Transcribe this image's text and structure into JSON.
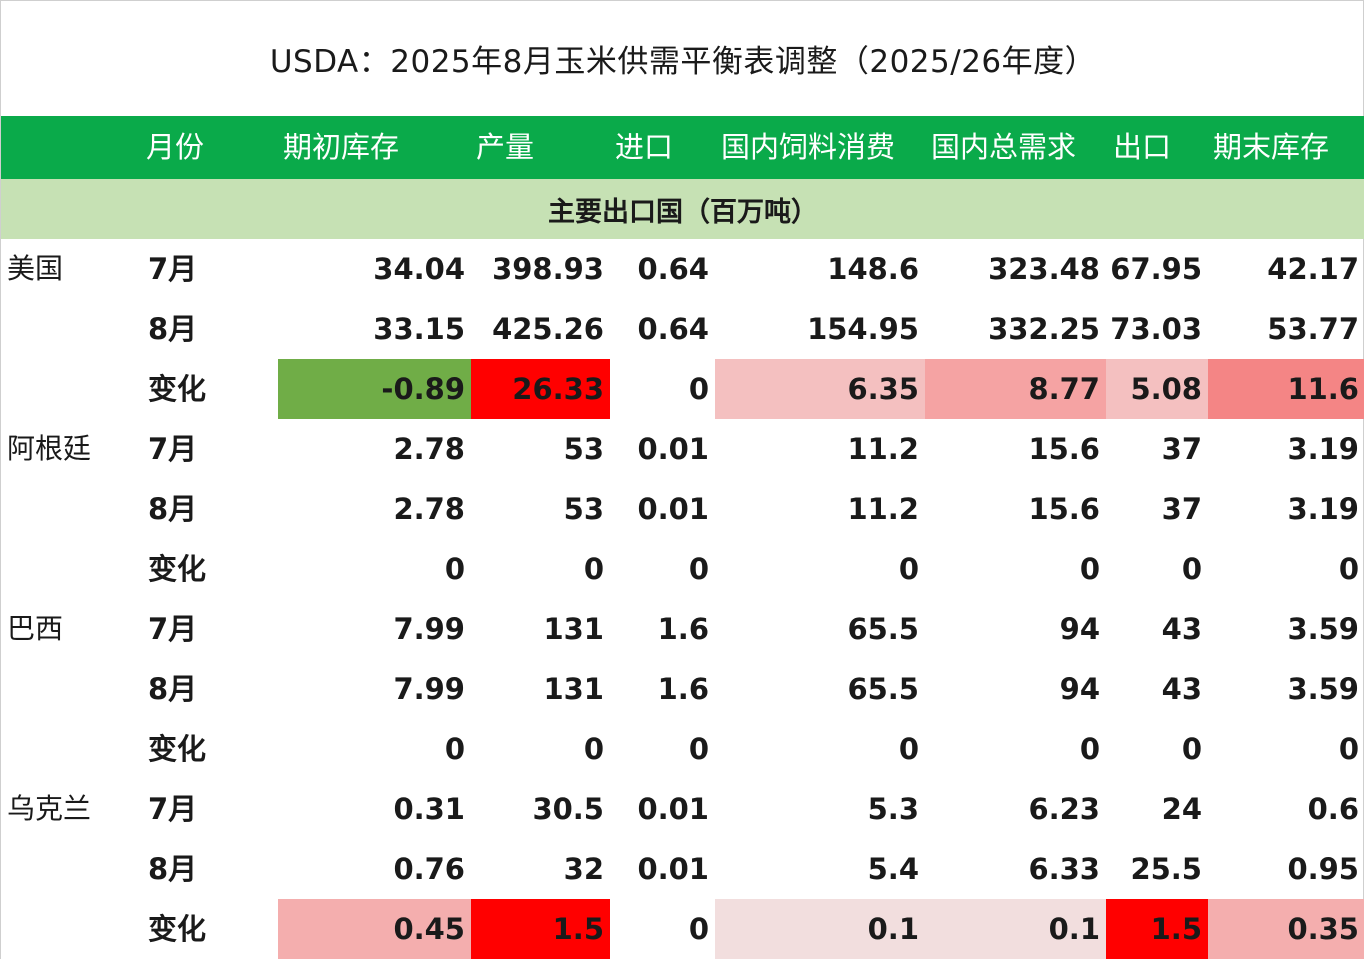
{
  "title": "USDA：2025年8月玉米供需平衡表调整（2025/26年度）",
  "headers": [
    "月份",
    "期初库存",
    "产量",
    "进口",
    "国内饲料消费",
    "国内总需求",
    "出口",
    "期末库存"
  ],
  "subheader": "主要出口国（百万吨）",
  "rows": [
    {
      "country": "美国",
      "month": "7月",
      "values": [
        "34.04",
        "398.93",
        "0.64",
        "148.6",
        "323.48",
        "67.95",
        "42.17"
      ],
      "colors": [
        null,
        null,
        null,
        null,
        null,
        null,
        null
      ]
    },
    {
      "country": "",
      "month": "8月",
      "values": [
        "33.15",
        "425.26",
        "0.64",
        "154.95",
        "332.25",
        "73.03",
        "53.77"
      ],
      "colors": [
        null,
        null,
        null,
        null,
        null,
        null,
        null
      ]
    },
    {
      "country": "",
      "month": "变化",
      "values": [
        "-0.89",
        "26.33",
        "0",
        "6.35",
        "8.77",
        "5.08",
        "11.6"
      ],
      "colors": [
        "#70ad47",
        "#ff0000",
        null,
        "#f4c0c0",
        "#f5a3a3",
        "#f4c0c0",
        "#f48585"
      ]
    },
    {
      "country": "阿根廷",
      "month": "7月",
      "values": [
        "2.78",
        "53",
        "0.01",
        "11.2",
        "15.6",
        "37",
        "3.19"
      ],
      "colors": [
        null,
        null,
        null,
        null,
        null,
        null,
        null
      ]
    },
    {
      "country": "",
      "month": "8月",
      "values": [
        "2.78",
        "53",
        "0.01",
        "11.2",
        "15.6",
        "37",
        "3.19"
      ],
      "colors": [
        null,
        null,
        null,
        null,
        null,
        null,
        null
      ]
    },
    {
      "country": "",
      "month": "变化",
      "values": [
        "0",
        "0",
        "0",
        "0",
        "0",
        "0",
        "0"
      ],
      "colors": [
        null,
        null,
        null,
        null,
        null,
        null,
        null
      ]
    },
    {
      "country": "巴西",
      "month": "7月",
      "values": [
        "7.99",
        "131",
        "1.6",
        "65.5",
        "94",
        "43",
        "3.59"
      ],
      "colors": [
        null,
        null,
        null,
        null,
        null,
        null,
        null
      ]
    },
    {
      "country": "",
      "month": "8月",
      "values": [
        "7.99",
        "131",
        "1.6",
        "65.5",
        "94",
        "43",
        "3.59"
      ],
      "colors": [
        null,
        null,
        null,
        null,
        null,
        null,
        null
      ]
    },
    {
      "country": "",
      "month": "变化",
      "values": [
        "0",
        "0",
        "0",
        "0",
        "0",
        "0",
        "0"
      ],
      "colors": [
        null,
        null,
        null,
        null,
        null,
        null,
        null
      ]
    },
    {
      "country": "乌克兰",
      "month": "7月",
      "values": [
        "0.31",
        "30.5",
        "0.01",
        "5.3",
        "6.23",
        "24",
        "0.6"
      ],
      "colors": [
        null,
        null,
        null,
        null,
        null,
        null,
        null
      ]
    },
    {
      "country": "",
      "month": "8月",
      "values": [
        "0.76",
        "32",
        "0.01",
        "5.4",
        "6.33",
        "25.5",
        "0.95"
      ],
      "colors": [
        null,
        null,
        null,
        null,
        null,
        null,
        null
      ]
    },
    {
      "country": "",
      "month": "变化",
      "values": [
        "0.45",
        "1.5",
        "0",
        "0.1",
        "0.1",
        "1.5",
        "0.35"
      ],
      "colors": [
        "#f4aeae",
        "#ff0000",
        null,
        "#f2dede",
        "#f2dede",
        "#ff0000",
        "#f4aeae"
      ]
    }
  ]
}
